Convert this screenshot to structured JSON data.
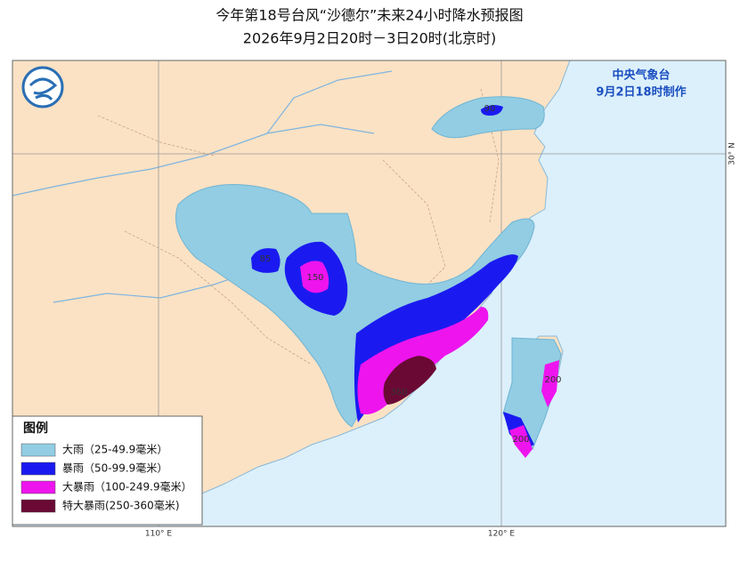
{
  "header": {
    "title": "今年第18号台风“沙德尔”未来24小时降水预报图",
    "subtitle": "2026年9月2日20时－3日20时(北京时)"
  },
  "agency": {
    "name": "中央气象台",
    "issued": "9月2日18时制作"
  },
  "legend": {
    "title": "图例",
    "items": [
      {
        "label": "大雨（25-49.9毫米）",
        "color": "#92cde3"
      },
      {
        "label": "暴雨（50-99.9毫米）",
        "color": "#1a1af0"
      },
      {
        "label": "大暴雨（100-249.9毫米）",
        "color": "#ee14ee"
      },
      {
        "label": "特大暴雨(250-360毫米)",
        "color": "#6a0a34"
      }
    ]
  },
  "map_labels": [
    "90",
    "85",
    "150",
    "360",
    "200",
    "200"
  ],
  "grid_labels": [
    "110° E",
    "120° E",
    "30° N"
  ]
}
